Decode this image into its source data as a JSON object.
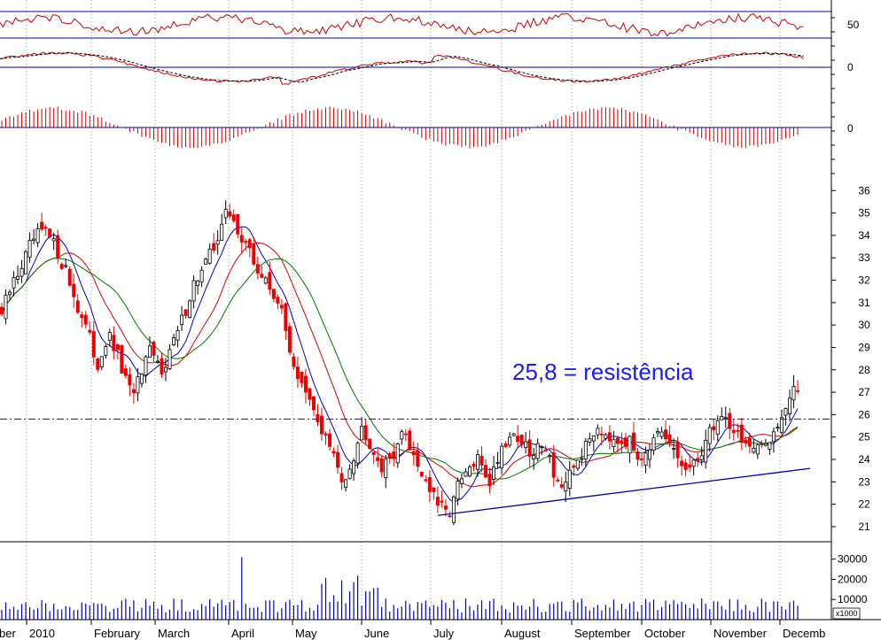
{
  "chart_data": {
    "type": "candlestick",
    "title": "",
    "xlabel": "",
    "ylabel": "",
    "x_tick_labels": [
      "ber",
      "2010",
      "February",
      "March",
      "April",
      "May",
      "June",
      "July",
      "August",
      "September",
      "October",
      "November",
      "Decemb"
    ],
    "price": {
      "ylim": [
        20.8,
        37
      ],
      "y_ticks": [
        21,
        22,
        23,
        24,
        25,
        26,
        27,
        28,
        29,
        30,
        31,
        32,
        33,
        34,
        35,
        36
      ],
      "months": [
        "2010",
        "February",
        "March",
        "April",
        "May",
        "June",
        "July",
        "August",
        "September",
        "October",
        "November",
        "December"
      ],
      "close_path": [
        30.5,
        31.8,
        32.8,
        33.8,
        34.2,
        33.5,
        32.5,
        31,
        29.8,
        28.2,
        29.5,
        28.5,
        27,
        27.5,
        28.8,
        28,
        29,
        30.2,
        31.8,
        32.5,
        33.5,
        35,
        34.5,
        33.6,
        32.5,
        31.8,
        31.2,
        29.2,
        27.5,
        26.5,
        25.5,
        24.5,
        23,
        24,
        25.5,
        24.5,
        23.5,
        24.5,
        25.2,
        24,
        23,
        22,
        21.5,
        22.8,
        23.5,
        24,
        23,
        24.5,
        25.2,
        24.8,
        24,
        25,
        23.5,
        22.5,
        23.8,
        24.5,
        25.5,
        25.2,
        25,
        24.8,
        24.2,
        24.6,
        25,
        24.6,
        23.8,
        23.4,
        24.5,
        25.5,
        26,
        25.3,
        24.8,
        24.2,
        24.8,
        25.5,
        26.5,
        27.2
      ],
      "resistance_level": 25.8,
      "annotation": "25,8 = resistência",
      "trendline": {
        "from": {
          "month": "July",
          "value": 21.5
        },
        "to": {
          "month": "December",
          "value": 23.6
        }
      },
      "moving_averages": [
        {
          "color": "#0000cc",
          "smooth": 6
        },
        {
          "color": "#dd0000",
          "smooth": 14
        },
        {
          "color": "#007700",
          "smooth": 22
        }
      ]
    },
    "volume": {
      "unit_label": "x1000",
      "ylim": [
        0,
        36000
      ],
      "y_ticks": [
        10000,
        20000,
        30000
      ],
      "y_tick_labels": [
        "10000",
        "20000",
        "30000"
      ],
      "typical": 7000,
      "peak": 31000
    },
    "oscillator": {
      "ref_tick_label": "50",
      "line_color": "#cc0000"
    },
    "macd": {
      "zero_label": "0",
      "line_color": "#cc0000",
      "signal_style": "dashed"
    },
    "histogram": {
      "zero_label": "0",
      "bar_color": "#cc0000"
    },
    "colors": {
      "up": "#000000",
      "down": "#ee0000",
      "reference_lines": "#0000aa",
      "annotation": "#1a1aff",
      "volume": "#0000cc"
    }
  }
}
